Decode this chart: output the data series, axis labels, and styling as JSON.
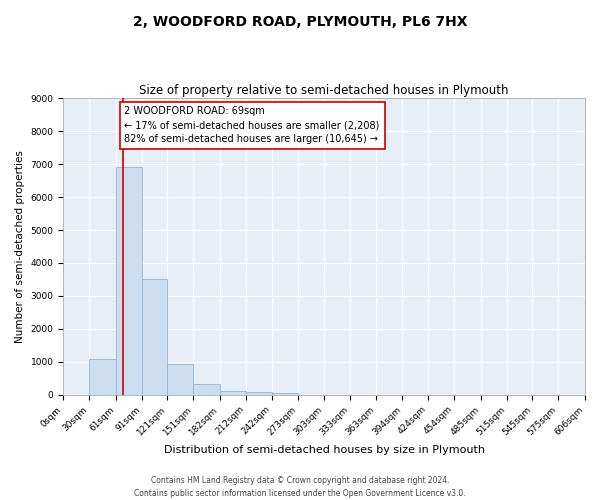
{
  "title": "2, WOODFORD ROAD, PLYMOUTH, PL6 7HX",
  "subtitle": "Size of property relative to semi-detached houses in Plymouth",
  "xlabel": "Distribution of semi-detached houses by size in Plymouth",
  "ylabel": "Number of semi-detached properties",
  "bar_color": "#ccddf0",
  "bar_edge_color": "#93b5d4",
  "background_color": "#e8eef8",
  "grid_color": "#ffffff",
  "annotation_line_color": "#cc0000",
  "annotation_box_edge_color": "#cc0000",
  "annotation_text": "2 WOODFORD ROAD: 69sqm\n← 17% of semi-detached houses are smaller (2,208)\n82% of semi-detached houses are larger (10,645) →",
  "property_size_sqm": 69,
  "bin_edges": [
    0,
    30,
    61,
    91,
    121,
    151,
    182,
    212,
    242,
    273,
    303,
    333,
    363,
    394,
    424,
    454,
    485,
    515,
    545,
    575,
    606
  ],
  "bar_heights": [
    0,
    1100,
    6900,
    3500,
    950,
    330,
    120,
    75,
    50,
    0,
    0,
    0,
    0,
    0,
    0,
    0,
    0,
    0,
    0,
    0
  ],
  "ylim": [
    0,
    9000
  ],
  "yticks": [
    0,
    1000,
    2000,
    3000,
    4000,
    5000,
    6000,
    7000,
    8000,
    9000
  ],
  "footer_text": "Contains HM Land Registry data © Crown copyright and database right 2024.\nContains public sector information licensed under the Open Government Licence v3.0.",
  "title_fontsize": 10,
  "subtitle_fontsize": 8.5,
  "xlabel_fontsize": 8,
  "ylabel_fontsize": 7.5,
  "tick_fontsize": 6.5,
  "annotation_fontsize": 7,
  "footer_fontsize": 5.5
}
